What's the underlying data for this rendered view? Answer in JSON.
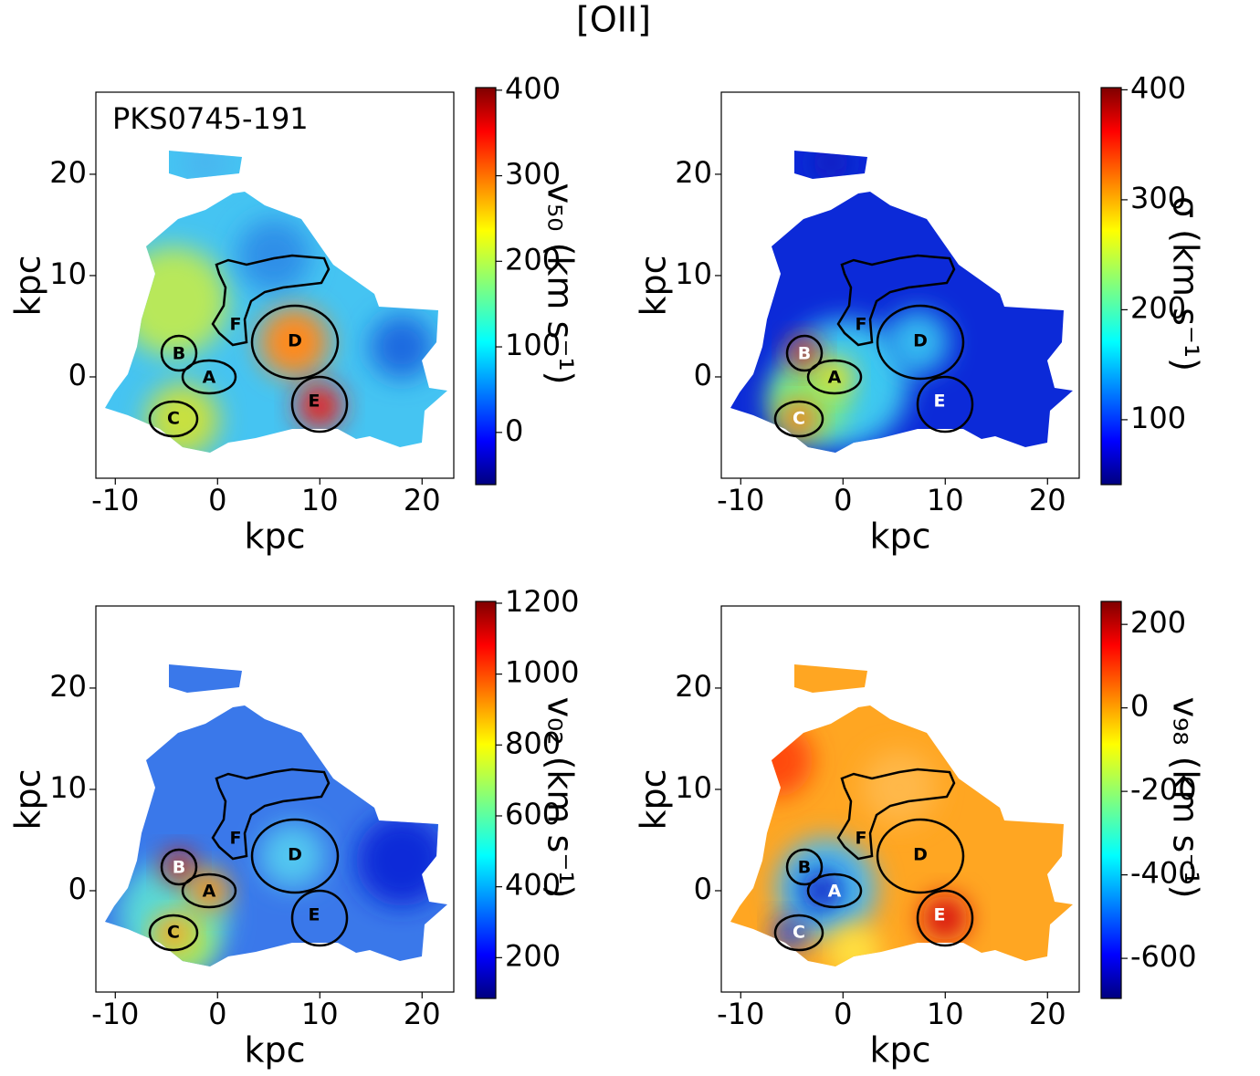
{
  "figure_title": "[OII]",
  "chart_data": [
    {
      "type": "heatmap",
      "annotation": "PKS0745-191",
      "xlabel": "kpc",
      "ylabel": "kpc",
      "xlim": [
        -11.9,
        23.1
      ],
      "ylim": [
        -10,
        28.1
      ],
      "xticks": [
        -10,
        0,
        10,
        20
      ],
      "yticks": [
        0,
        10,
        20
      ],
      "colormap": "jet",
      "colorbar": {
        "label": "v₅₀ (km s⁻¹)",
        "lim": [
          -61,
          403
        ],
        "ticks": [
          0,
          100,
          200,
          300,
          400
        ]
      },
      "regions": [
        {
          "label": "A",
          "color": "#000"
        },
        {
          "label": "B",
          "color": "#000"
        },
        {
          "label": "C",
          "color": "#000"
        },
        {
          "label": "D",
          "color": "#000"
        },
        {
          "label": "E",
          "color": "#000"
        },
        {
          "label": "F",
          "color": "#000"
        }
      ]
    },
    {
      "type": "heatmap",
      "xlabel": "kpc",
      "ylabel": "kpc",
      "xlim": [
        -11.9,
        23.1
      ],
      "ylim": [
        -10,
        28.1
      ],
      "xticks": [
        -10,
        0,
        10,
        20
      ],
      "yticks": [
        0,
        10,
        20
      ],
      "colormap": "jet",
      "colorbar": {
        "label": "σ (km s⁻¹)",
        "lim": [
          41,
          402
        ],
        "ticks": [
          100,
          200,
          300,
          400
        ]
      },
      "regions": [
        {
          "label": "A",
          "color": "#000"
        },
        {
          "label": "B",
          "color": "#fff"
        },
        {
          "label": "C",
          "color": "#fff"
        },
        {
          "label": "D",
          "color": "#000"
        },
        {
          "label": "E",
          "color": "#fff"
        },
        {
          "label": "F",
          "color": "#000"
        }
      ]
    },
    {
      "type": "heatmap",
      "xlabel": "kpc",
      "ylabel": "kpc",
      "xlim": [
        -11.9,
        23.1
      ],
      "ylim": [
        -10,
        28.1
      ],
      "xticks": [
        -10,
        0,
        10,
        20
      ],
      "yticks": [
        0,
        10,
        20
      ],
      "colormap": "jet",
      "colorbar": {
        "label": "v₀₂ (km s⁻¹)",
        "lim": [
          85,
          1205
        ],
        "ticks": [
          200,
          400,
          600,
          800,
          1000,
          1200
        ]
      },
      "regions": [
        {
          "label": "A",
          "color": "#000"
        },
        {
          "label": "B",
          "color": "#fff"
        },
        {
          "label": "C",
          "color": "#000"
        },
        {
          "label": "D",
          "color": "#000"
        },
        {
          "label": "E",
          "color": "#000"
        },
        {
          "label": "F",
          "color": "#000"
        }
      ]
    },
    {
      "type": "heatmap",
      "xlabel": "kpc",
      "ylabel": "kpc",
      "xlim": [
        -11.9,
        23.1
      ],
      "ylim": [
        -10,
        28.1
      ],
      "xticks": [
        -10,
        0,
        10,
        20
      ],
      "yticks": [
        0,
        10,
        20
      ],
      "colormap": "jet",
      "colorbar": {
        "label": "v₉₈ (km s⁻¹)",
        "lim": [
          -696,
          255
        ],
        "ticks": [
          -600,
          -400,
          -200,
          0,
          200
        ]
      },
      "regions": [
        {
          "label": "A",
          "color": "#fff"
        },
        {
          "label": "B",
          "color": "#000"
        },
        {
          "label": "C",
          "color": "#fff"
        },
        {
          "label": "D",
          "color": "#000"
        },
        {
          "label": "E",
          "color": "#fff"
        },
        {
          "label": "F",
          "color": "#000"
        }
      ]
    }
  ]
}
